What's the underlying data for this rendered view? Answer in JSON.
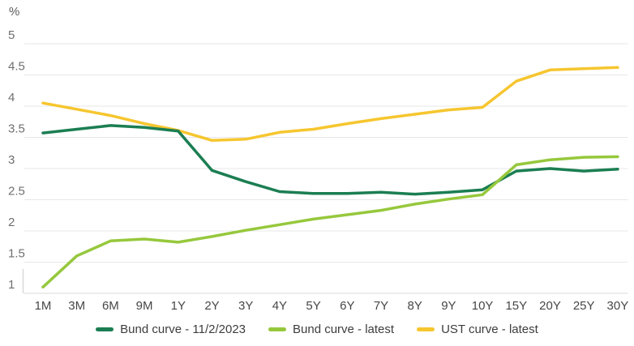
{
  "chart_data": {
    "type": "line",
    "title": "",
    "ylabel": "%",
    "xlabel": "",
    "ylim": [
      1,
      5
    ],
    "ytick_step": 0.5,
    "ytick_labels": [
      "5",
      "4.5",
      "4",
      "3.5",
      "3",
      "2.5",
      "2",
      "1.5",
      "1"
    ],
    "grid": true,
    "legend_position": "bottom",
    "categories": [
      "1M",
      "3M",
      "6M",
      "9M",
      "1Y",
      "2Y",
      "3Y",
      "4Y",
      "5Y",
      "6Y",
      "7Y",
      "8Y",
      "9Y",
      "10Y",
      "15Y",
      "20Y",
      "25Y",
      "30Y"
    ],
    "series": [
      {
        "name": "Bund curve - 11/2/2023",
        "color": "#1b7e52",
        "values": [
          3.57,
          3.63,
          3.69,
          3.66,
          3.6,
          2.97,
          2.79,
          2.63,
          2.6,
          2.6,
          2.62,
          2.59,
          2.62,
          2.66,
          2.96,
          3.0,
          2.96,
          2.99
        ]
      },
      {
        "name": "Bund curve - latest",
        "color": "#96c83c",
        "values": [
          1.1,
          1.6,
          1.84,
          1.87,
          1.82,
          1.91,
          2.01,
          2.1,
          2.19,
          2.26,
          2.33,
          2.43,
          2.51,
          2.58,
          3.06,
          3.14,
          3.18,
          3.19
        ]
      },
      {
        "name": "UST curve - latest",
        "color": "#f6c62f",
        "values": [
          4.05,
          3.95,
          3.85,
          3.72,
          3.61,
          3.45,
          3.47,
          3.58,
          3.63,
          3.72,
          3.8,
          3.87,
          3.94,
          3.98,
          4.4,
          4.58,
          4.6,
          4.62
        ]
      }
    ]
  },
  "colors": {
    "background": "#ffffff",
    "gridline": "#e7e7e7",
    "baseline": "#d9d9d9",
    "axis_fragment": "#d8d8d8",
    "y_tick_text": "#6f6f6f",
    "x_tick_text": "#474747"
  }
}
